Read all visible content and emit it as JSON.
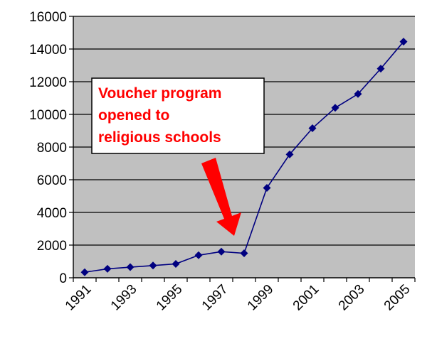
{
  "chart_data": {
    "type": "line",
    "title": "",
    "xlabel": "",
    "ylabel": "",
    "x": [
      1991,
      1992,
      1993,
      1994,
      1995,
      1996,
      1997,
      1998,
      1999,
      2000,
      2001,
      2002,
      2003,
      2004,
      2005
    ],
    "x_tick_labels": [
      "1991",
      "1993",
      "1995",
      "1997",
      "1999",
      "2001",
      "2003",
      "2005"
    ],
    "y_tick_labels": [
      "0",
      "2000",
      "4000",
      "6000",
      "8000",
      "10000",
      "12000",
      "14000",
      "16000"
    ],
    "ylim": [
      0,
      16000
    ],
    "grid": "horizontal",
    "legend": "none",
    "series": [
      {
        "values": [
          337,
          550,
          650,
          750,
          850,
          1380,
          1600,
          1500,
          5500,
          7550,
          9150,
          10400,
          11250,
          12800,
          14450
        ],
        "color": "#000080"
      }
    ],
    "annotation": {
      "lines": [
        "Voucher program",
        "opened to",
        "religious schools"
      ],
      "text_color": "#ff0000",
      "arrow_color": "#ff0000",
      "points_to_x": 1998
    },
    "plot_background": "#c0c0c0"
  }
}
